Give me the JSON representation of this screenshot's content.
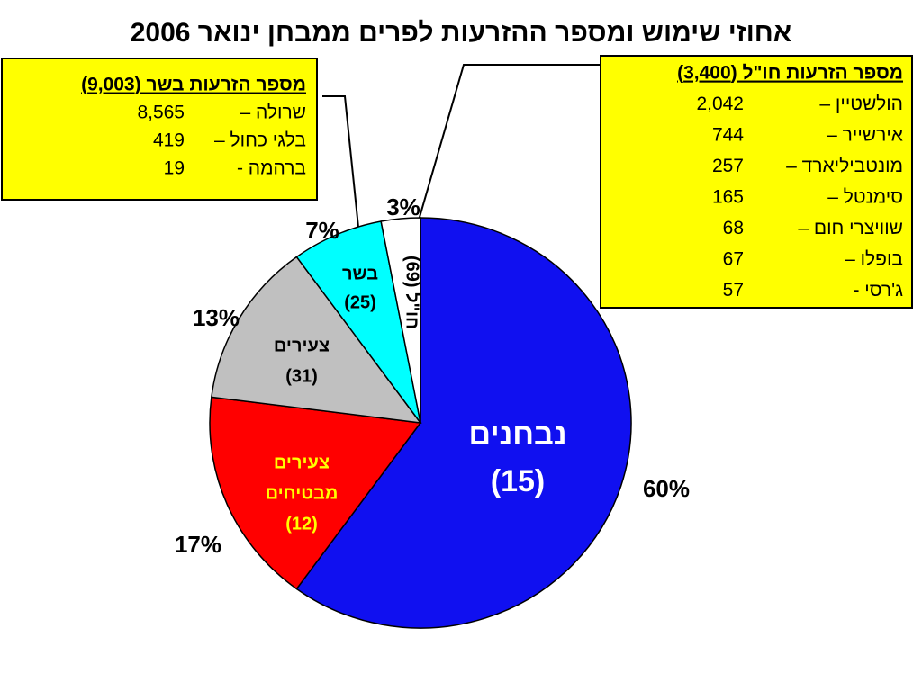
{
  "chart_data": {
    "type": "pie",
    "title": "אחוזי שימוש ומספר ההזרעות לפרים ממבחן ינואר 2006",
    "slice_labels": [
      [
        "נבחנים",
        "(15)"
      ],
      [
        "צעירים",
        "מבטיחים",
        "(12)"
      ],
      [
        "צעירים",
        "(31)"
      ],
      [
        "בשר",
        "(25)"
      ],
      [
        "חו\"ל (69)"
      ]
    ],
    "values": [
      60,
      17,
      13,
      7,
      3
    ],
    "value_labels": [
      "60%",
      "17%",
      "13%",
      "7%",
      "3%"
    ],
    "colors": [
      "#1010f0",
      "#ff0000",
      "#c0c0c0",
      "#00ffff",
      "#ffffff"
    ],
    "annotations": [
      {
        "title": "מספר הזרעות בשר (9,003)",
        "rows": [
          {
            "name": "שרולה –",
            "value": "8,565"
          },
          {
            "name": "בלגי כחול –",
            "value": "419"
          },
          {
            "name": "ברהמה -",
            "value": "19"
          }
        ]
      },
      {
        "title": "מספר הזרעות חו\"ל (3,400)",
        "rows": [
          {
            "name": "הולשטיין –",
            "value": "2,042"
          },
          {
            "name": "אירשייר –",
            "value": "744"
          },
          {
            "name": "מונטביליארד –",
            "value": "257"
          },
          {
            "name": "סימנטל –",
            "value": "165"
          },
          {
            "name": "שוויצרי חום –",
            "value": "68"
          },
          {
            "name": "בופלו –",
            "value": "67"
          },
          {
            "name": "ג'רסי -",
            "value": "57"
          }
        ]
      }
    ]
  }
}
